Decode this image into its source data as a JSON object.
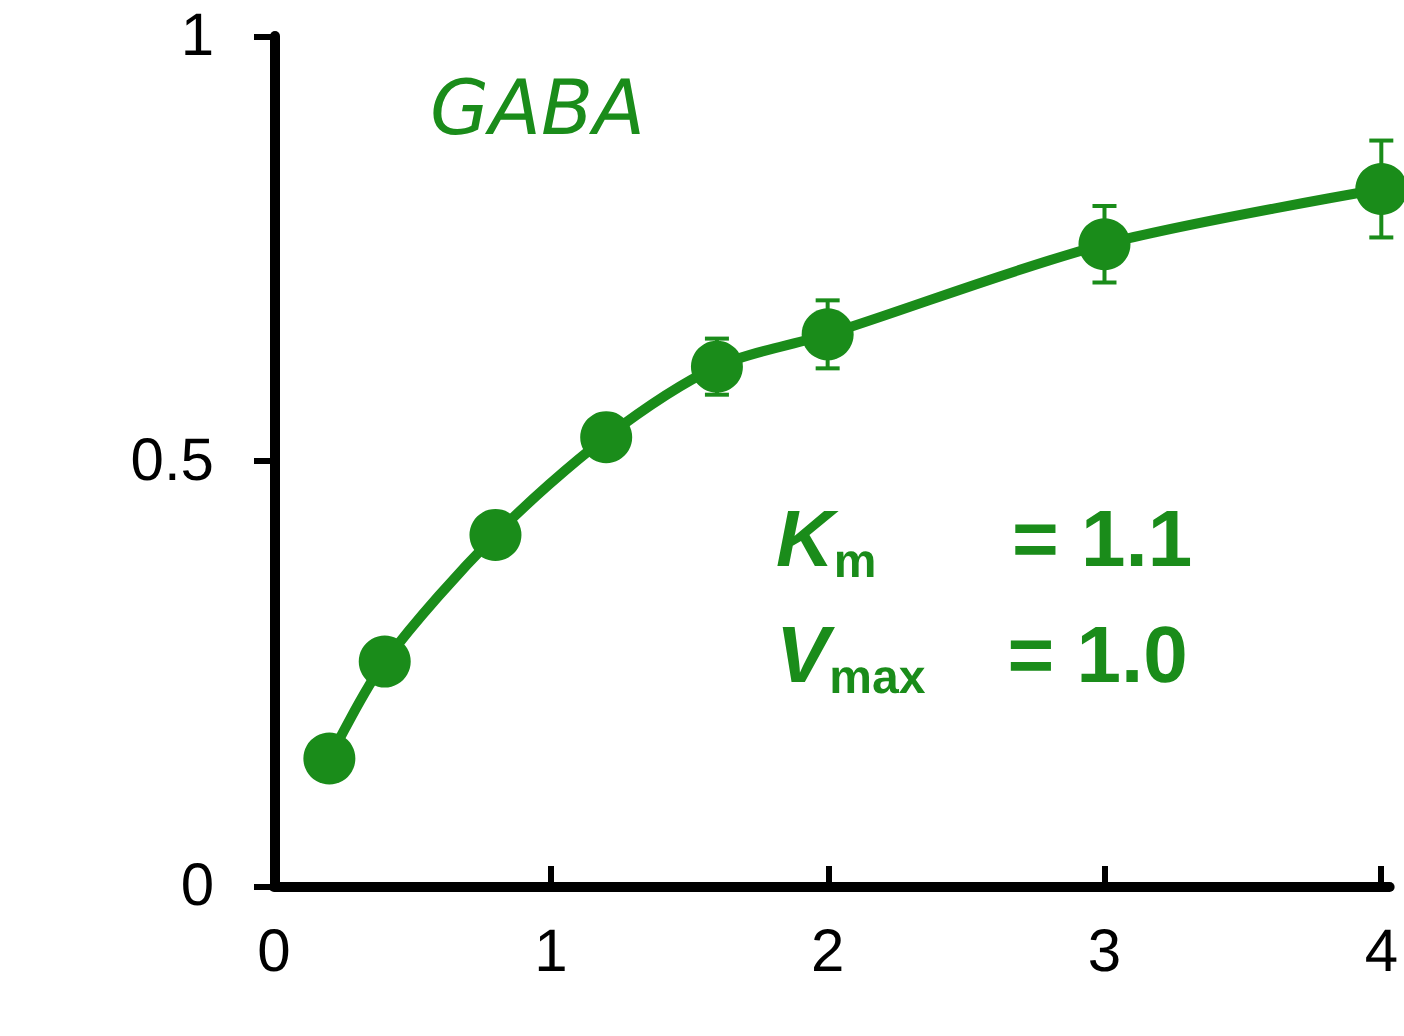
{
  "chart_data": {
    "type": "line",
    "x": [
      0.2,
      0.4,
      0.8,
      1.2,
      1.6,
      2,
      3,
      4
    ],
    "series": [
      {
        "color": "#1a8c1a",
        "values": [
          0.15,
          0.264,
          0.413,
          0.528,
          0.611,
          0.649,
          0.755,
          0.82
        ],
        "errors": [
          null,
          null,
          null,
          null,
          0.033,
          0.04,
          0.045,
          0.057
        ]
      }
    ],
    "xlim": [
      0,
      4.03
    ],
    "xticks": [
      0,
      1,
      2,
      3,
      4
    ],
    "ylim": [
      0,
      1
    ],
    "yticks": [
      0,
      0.5,
      1
    ],
    "marker": "circle",
    "line_style": "solid",
    "annotations": [
      "GABA",
      "K$_{m}$ = 1.1",
      "V$_{max}$ = 1.0"
    ]
  }
}
